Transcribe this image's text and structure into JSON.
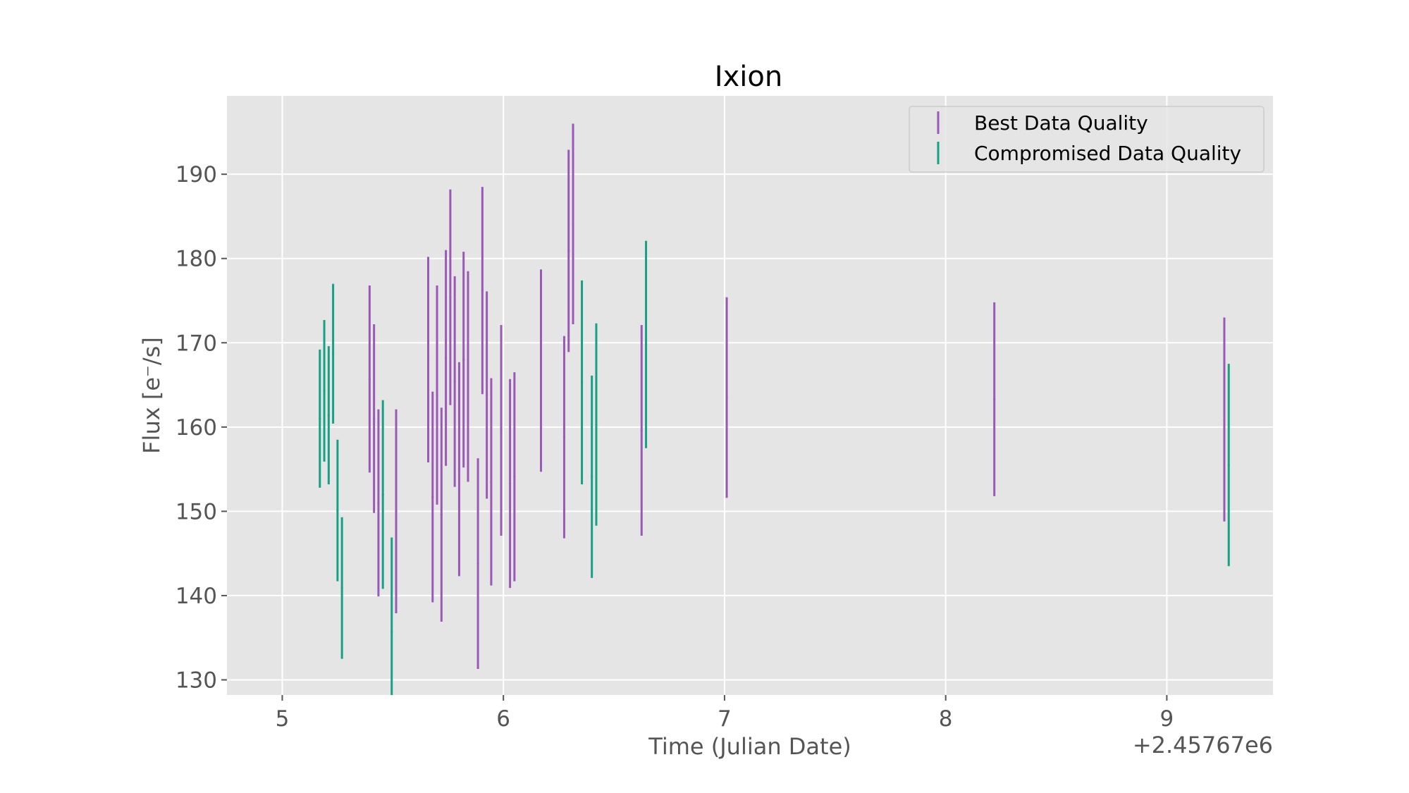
{
  "chart_data": {
    "type": "errorbar",
    "title": "Ixion",
    "xlabel": "Time (Julian Date)",
    "ylabel": "Flux [e⁻/s]",
    "x_offset_label": "+2.45767e6",
    "xlim": [
      4.75,
      9.48
    ],
    "ylim": [
      128.2,
      199.3
    ],
    "xticks": [
      "5",
      "6",
      "7",
      "8",
      "9"
    ],
    "yticks": [
      "130",
      "140",
      "150",
      "160",
      "170",
      "180",
      "190"
    ],
    "grid": true,
    "legend_position": "top-right",
    "series": [
      {
        "name": "Best Data Quality",
        "color": "#9b59b6",
        "points": [
          {
            "x": 5.395,
            "y": 165.7,
            "err": 11.1
          },
          {
            "x": 5.415,
            "y": 161.0,
            "err": 11.2
          },
          {
            "x": 5.435,
            "y": 151.0,
            "err": 11.1
          },
          {
            "x": 5.515,
            "y": 150.0,
            "err": 12.1
          },
          {
            "x": 5.66,
            "y": 168.0,
            "err": 12.2
          },
          {
            "x": 5.68,
            "y": 151.7,
            "err": 12.5
          },
          {
            "x": 5.7,
            "y": 163.8,
            "err": 13.0
          },
          {
            "x": 5.72,
            "y": 149.6,
            "err": 12.7
          },
          {
            "x": 5.74,
            "y": 168.2,
            "err": 12.8
          },
          {
            "x": 5.76,
            "y": 175.4,
            "err": 12.8
          },
          {
            "x": 5.78,
            "y": 165.4,
            "err": 12.5
          },
          {
            "x": 5.8,
            "y": 155.0,
            "err": 12.7
          },
          {
            "x": 5.82,
            "y": 168.0,
            "err": 12.8
          },
          {
            "x": 5.84,
            "y": 166.0,
            "err": 12.5
          },
          {
            "x": 5.885,
            "y": 143.8,
            "err": 12.5
          },
          {
            "x": 5.905,
            "y": 176.2,
            "err": 12.3
          },
          {
            "x": 5.925,
            "y": 163.8,
            "err": 12.3
          },
          {
            "x": 5.945,
            "y": 153.5,
            "err": 12.3
          },
          {
            "x": 5.99,
            "y": 159.6,
            "err": 12.5
          },
          {
            "x": 6.03,
            "y": 153.3,
            "err": 12.4
          },
          {
            "x": 6.05,
            "y": 154.1,
            "err": 12.4
          },
          {
            "x": 6.17,
            "y": 166.7,
            "err": 12.0
          },
          {
            "x": 6.275,
            "y": 158.8,
            "err": 12.0
          },
          {
            "x": 6.295,
            "y": 180.9,
            "err": 12.0
          },
          {
            "x": 6.315,
            "y": 184.1,
            "err": 11.9
          },
          {
            "x": 6.625,
            "y": 159.6,
            "err": 12.5
          },
          {
            "x": 7.01,
            "y": 163.5,
            "err": 11.9
          },
          {
            "x": 8.22,
            "y": 163.3,
            "err": 11.5
          },
          {
            "x": 9.26,
            "y": 160.9,
            "err": 12.1
          }
        ]
      },
      {
        "name": "Compromised Data Quality",
        "color": "#16a085",
        "points": [
          {
            "x": 5.17,
            "y": 161.0,
            "err": 8.2
          },
          {
            "x": 5.19,
            "y": 164.3,
            "err": 8.4
          },
          {
            "x": 5.21,
            "y": 161.4,
            "err": 8.2
          },
          {
            "x": 5.23,
            "y": 168.7,
            "err": 8.3
          },
          {
            "x": 5.25,
            "y": 150.1,
            "err": 8.4
          },
          {
            "x": 5.27,
            "y": 140.9,
            "err": 8.4
          },
          {
            "x": 5.455,
            "y": 152.0,
            "err": 11.2
          },
          {
            "x": 5.495,
            "y": 135.7,
            "err": 11.2
          },
          {
            "x": 6.355,
            "y": 165.3,
            "err": 12.1
          },
          {
            "x": 6.4,
            "y": 154.1,
            "err": 12.0
          },
          {
            "x": 6.42,
            "y": 160.3,
            "err": 12.0
          },
          {
            "x": 6.645,
            "y": 169.8,
            "err": 12.3
          },
          {
            "x": 9.28,
            "y": 155.5,
            "err": 12.0
          }
        ]
      }
    ]
  }
}
